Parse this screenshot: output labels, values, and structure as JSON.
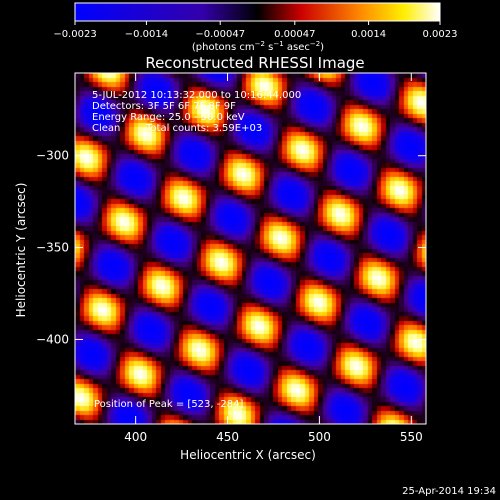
{
  "colorbar": {
    "ticks": [
      -0.0023,
      -0.0014,
      -0.00047,
      0.00047,
      0.0014,
      0.0023
    ],
    "tick_labels": [
      "−0.0023",
      "−0.0014",
      "−0.00047",
      "0.00047",
      "0.0014",
      "0.0023"
    ],
    "unit_main": "(photons cm",
    "unit_sup1": "−2",
    "unit_mid1": " s",
    "unit_sup2": "−1",
    "unit_mid2": " asec",
    "unit_sup3": "−2",
    "unit_end": ")",
    "colors": [
      "#0000ff",
      "#000000",
      "#ff0000",
      "#ffff00",
      "#ffffff"
    ]
  },
  "chart_data": {
    "type": "heatmap",
    "title": "Reconstructed RHESSI Image",
    "xlabel": "Heliocentric X (arcsec)",
    "ylabel": "Heliocentric Y (arcsec)",
    "xlim": [
      367,
      558
    ],
    "ylim": [
      -446,
      -255
    ],
    "xticks": [
      400,
      450,
      500,
      550
    ],
    "yticks": [
      -300,
      -350,
      -400
    ],
    "xtick_labels": [
      "400",
      "450",
      "500",
      "550"
    ],
    "ytick_labels": [
      "−300",
      "−350",
      "−400"
    ],
    "value_range": [
      -0.0023,
      0.0023
    ],
    "pattern": {
      "kx": 0.157,
      "ky": 0.0925,
      "qx": -0.0586,
      "qy": 0.1457
    }
  },
  "overlay": {
    "line1": "5-JUL-2012 10:13:32.000 to 10:16:44.000",
    "line2": "Detectors: 3F 5F 6F 7F 8F 9F",
    "line3": "Energy Range: 25.0 - 50.0 keV",
    "line4a": "Clean",
    "line4b": "Total counts: 3.59E+03",
    "peak": "Position of Peak = [523, -284]"
  },
  "footer": {
    "timestamp": "25-Apr-2014 19:34"
  }
}
